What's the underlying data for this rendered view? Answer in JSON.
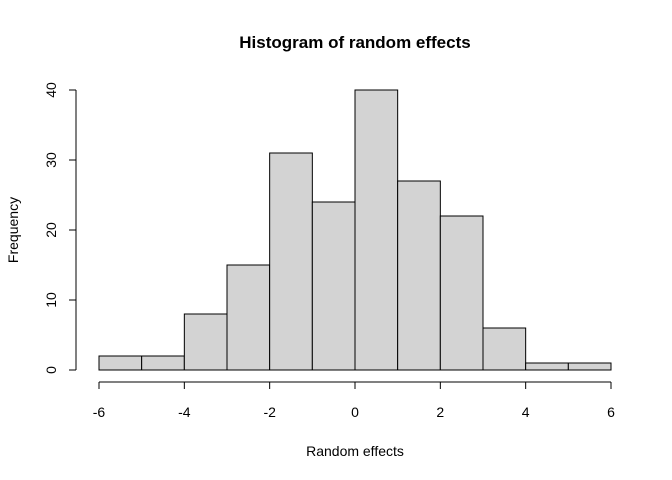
{
  "chart_data": {
    "type": "bar",
    "title": "Histogram of random effects",
    "xlabel": "Random effects",
    "ylabel": "Frequency",
    "bins": [
      {
        "x0": -6,
        "x1": -5,
        "count": 2
      },
      {
        "x0": -5,
        "x1": -4,
        "count": 2
      },
      {
        "x0": -4,
        "x1": -3,
        "count": 8
      },
      {
        "x0": -3,
        "x1": -2,
        "count": 15
      },
      {
        "x0": -2,
        "x1": -1,
        "count": 31
      },
      {
        "x0": -1,
        "x1": 0,
        "count": 24
      },
      {
        "x0": 0,
        "x1": 1,
        "count": 40
      },
      {
        "x0": 1,
        "x1": 2,
        "count": 27
      },
      {
        "x0": 2,
        "x1": 3,
        "count": 22
      },
      {
        "x0": 3,
        "x1": 4,
        "count": 6
      },
      {
        "x0": 4,
        "x1": 5,
        "count": 1
      },
      {
        "x0": 5,
        "x1": 6,
        "count": 1
      }
    ],
    "xlim": [
      -6,
      6
    ],
    "ylim": [
      0,
      40
    ],
    "xticks": [
      -6,
      -4,
      -2,
      0,
      2,
      4,
      6
    ],
    "yticks": [
      0,
      10,
      20,
      30,
      40
    ],
    "bar_color": "#d3d3d3",
    "bar_border_color": "#000000",
    "grid": false,
    "legend": "none"
  }
}
